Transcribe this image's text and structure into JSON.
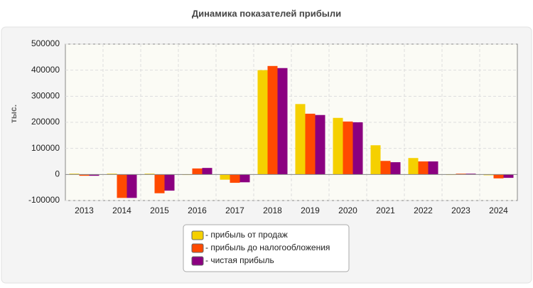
{
  "chart_data": {
    "type": "bar",
    "title": "Динамика показателей прибыли",
    "y_label": "тыс.",
    "categories": [
      "2013",
      "2014",
      "2015",
      "2016",
      "2017",
      "2018",
      "2019",
      "2020",
      "2021",
      "2022",
      "2023",
      "2024"
    ],
    "series": [
      {
        "name": "- прибыль от продаж",
        "color": "#f5d000",
        "values": [
          3000,
          3000,
          3000,
          -2000,
          -20000,
          400000,
          270000,
          217000,
          112000,
          63000,
          -2000,
          -3000
        ]
      },
      {
        "name": "- прибыль до налогообложения",
        "color": "#ff4a00",
        "values": [
          -5000,
          -90000,
          -72000,
          23000,
          -32000,
          416000,
          233000,
          203000,
          52000,
          50000,
          3000,
          -15000
        ]
      },
      {
        "name": "- чистая прибыль",
        "color": "#8b0080",
        "values": [
          -5000,
          -90000,
          -62000,
          25000,
          -30000,
          408000,
          228000,
          200000,
          47000,
          50000,
          3000,
          -13000
        ]
      }
    ],
    "ylim": [
      -100000,
      500000
    ],
    "yticks": [
      -100000,
      0,
      100000,
      200000,
      300000,
      400000,
      500000
    ],
    "grid": true
  }
}
